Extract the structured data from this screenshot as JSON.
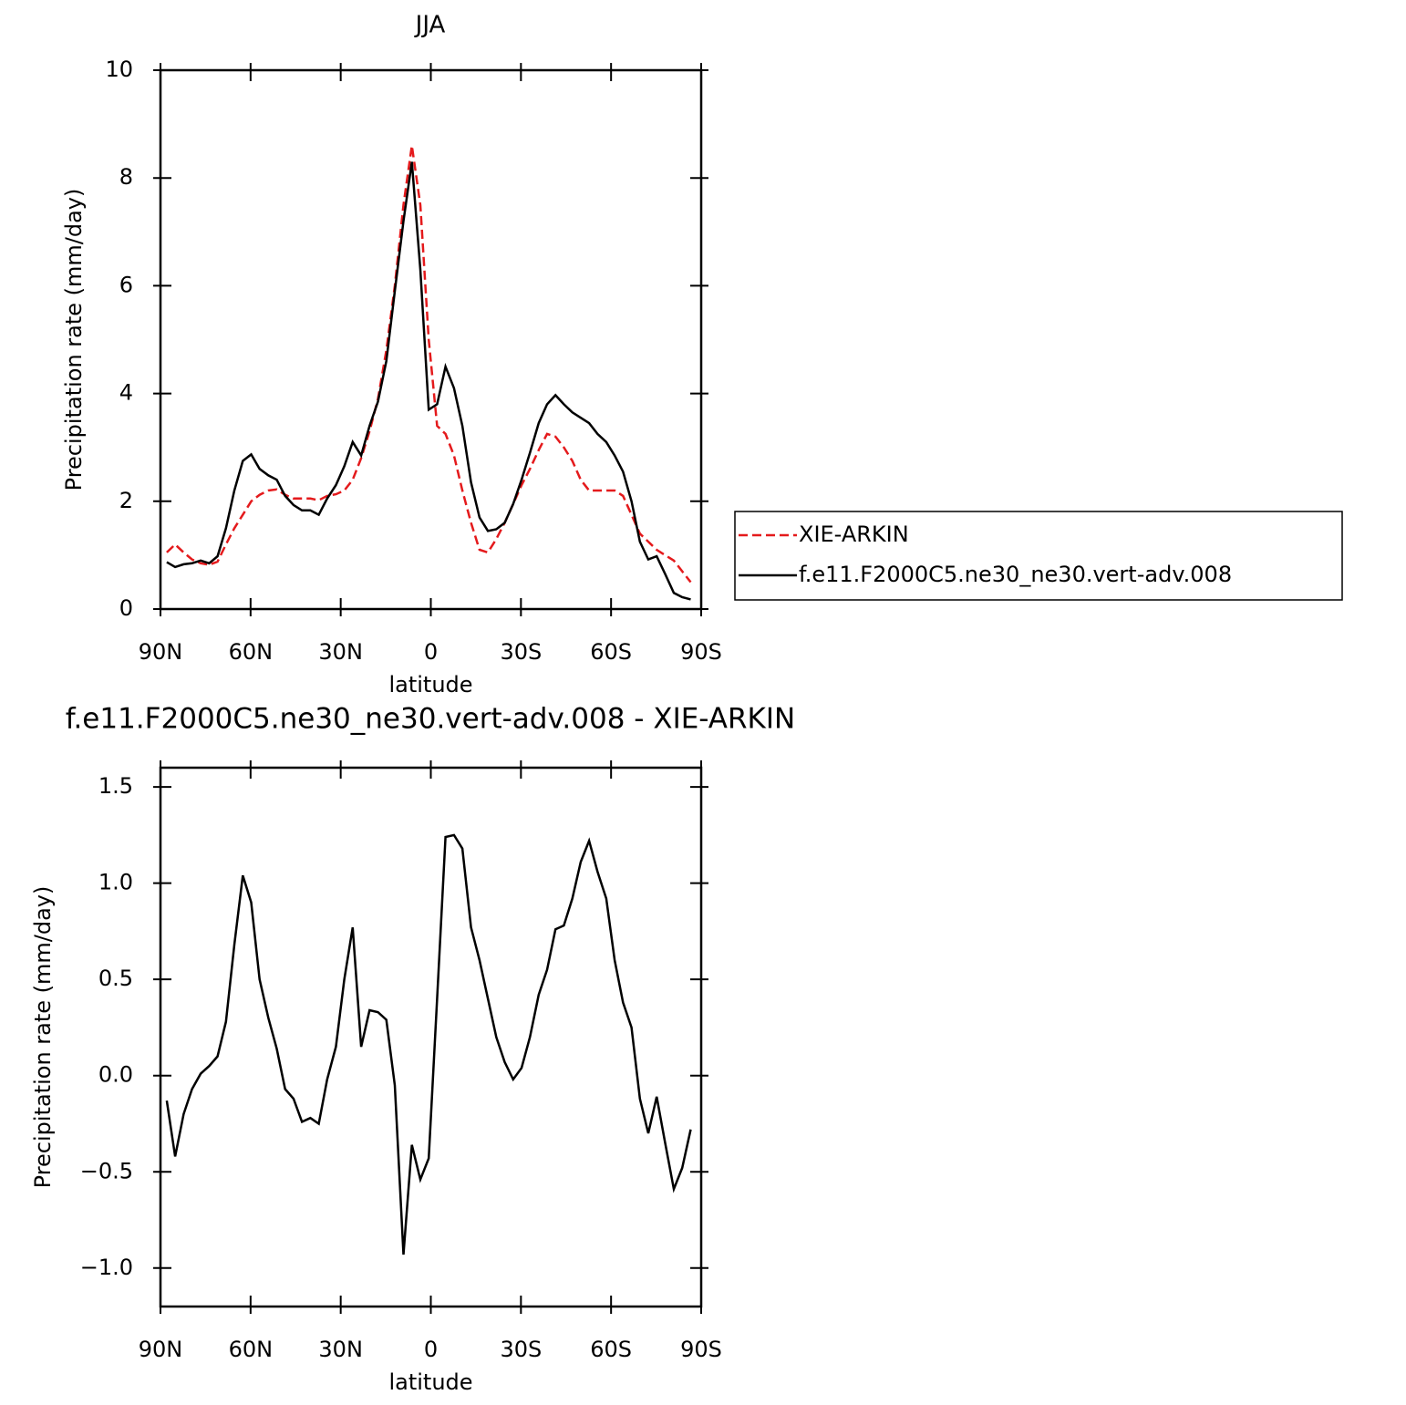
{
  "chart_data": [
    {
      "type": "line",
      "title": "JJA",
      "xlabel": "latitude",
      "ylabel": "Precipitation rate (mm/day)",
      "x": [
        87.9,
        85.1,
        82.3,
        79.5,
        76.6,
        73.8,
        71.0,
        68.2,
        65.4,
        62.6,
        59.8,
        57.0,
        54.1,
        51.3,
        48.5,
        45.7,
        42.9,
        40.1,
        37.3,
        34.5,
        31.6,
        28.8,
        26.0,
        23.2,
        20.4,
        17.6,
        14.8,
        12.0,
        9.1,
        6.3,
        3.5,
        0.7,
        -2.1,
        -4.9,
        -7.7,
        -10.5,
        -13.4,
        -16.2,
        -19.0,
        -21.8,
        -24.6,
        -27.4,
        -30.2,
        -33.0,
        -35.9,
        -38.7,
        -41.5,
        -44.3,
        -47.1,
        -49.9,
        -52.7,
        -55.5,
        -58.4,
        -61.2,
        -64.0,
        -66.8,
        -69.6,
        -72.4,
        -75.2,
        -78.0,
        -80.9,
        -83.7,
        -86.5
      ],
      "series": [
        {
          "name": "XIE-ARKIN",
          "color": "#e41a1c",
          "line_style": "dashed",
          "values": [
            1.05,
            1.2,
            1.05,
            0.92,
            0.85,
            0.82,
            0.88,
            1.2,
            1.5,
            1.75,
            2.0,
            2.12,
            2.2,
            2.22,
            2.12,
            2.05,
            2.05,
            2.05,
            2.02,
            2.1,
            2.13,
            2.2,
            2.4,
            2.8,
            3.3,
            3.9,
            4.8,
            6.0,
            7.5,
            8.6,
            7.5,
            5.0,
            3.4,
            3.25,
            2.85,
            2.2,
            1.6,
            1.1,
            1.05,
            1.3,
            1.6,
            1.95,
            2.3,
            2.6,
            2.95,
            3.25,
            3.2,
            3.0,
            2.75,
            2.4,
            2.2,
            2.2,
            2.2,
            2.2,
            2.1,
            1.75,
            1.4,
            1.25,
            1.1,
            1.0,
            0.9,
            0.7,
            0.5
          ]
        },
        {
          "name": "f.e11.F2000C5.ne30_ne30.vert-adv.008",
          "color": "#000000",
          "line_style": "solid",
          "values": [
            0.87,
            0.78,
            0.83,
            0.85,
            0.9,
            0.85,
            0.98,
            1.5,
            2.2,
            2.75,
            2.87,
            2.6,
            2.48,
            2.4,
            2.1,
            1.93,
            1.83,
            1.83,
            1.75,
            2.05,
            2.3,
            2.65,
            3.1,
            2.85,
            3.4,
            3.85,
            4.6,
            5.9,
            7.2,
            8.3,
            6.3,
            3.7,
            3.8,
            4.5,
            4.1,
            3.4,
            2.35,
            1.7,
            1.45,
            1.48,
            1.6,
            1.95,
            2.4,
            2.9,
            3.45,
            3.8,
            3.97,
            3.8,
            3.65,
            3.55,
            3.45,
            3.25,
            3.1,
            2.85,
            2.55,
            2.0,
            1.25,
            0.92,
            0.98,
            0.65,
            0.3,
            0.22,
            0.18
          ]
        }
      ],
      "xlim": [
        90,
        -90
      ],
      "xticks": [
        {
          "value": 90,
          "label": "90N"
        },
        {
          "value": 60,
          "label": "60N"
        },
        {
          "value": 30,
          "label": "30N"
        },
        0,
        {
          "value": -30,
          "label": "30S"
        },
        {
          "value": -60,
          "label": "60S"
        },
        {
          "value": -90,
          "label": "90S"
        }
      ],
      "ylim": [
        0,
        10
      ],
      "yticks": [
        0,
        2,
        4,
        6,
        8,
        10
      ],
      "legend": "outside-right"
    },
    {
      "type": "line",
      "title": "f.e11.F2000C5.ne30_ne30.vert-adv.008 - XIE-ARKIN",
      "xlabel": "latitude",
      "ylabel": "Precipitation rate (mm/day)",
      "x": [
        87.9,
        85.1,
        82.3,
        79.5,
        76.6,
        73.8,
        71.0,
        68.2,
        65.4,
        62.6,
        59.8,
        57.0,
        54.1,
        51.3,
        48.5,
        45.7,
        42.9,
        40.1,
        37.3,
        34.5,
        31.6,
        28.8,
        26.0,
        23.2,
        20.4,
        17.6,
        14.8,
        12.0,
        9.1,
        6.3,
        3.5,
        0.7,
        -2.1,
        -4.9,
        -7.7,
        -10.5,
        -13.4,
        -16.2,
        -19.0,
        -21.8,
        -24.6,
        -27.4,
        -30.2,
        -33.0,
        -35.9,
        -38.7,
        -41.5,
        -44.3,
        -47.1,
        -49.9,
        -52.7,
        -55.5,
        -58.4,
        -61.2,
        -64.0,
        -66.8,
        -69.6,
        -72.4,
        -75.2,
        -78.0,
        -80.9,
        -83.7,
        -86.5
      ],
      "series": [
        {
          "color": "#000000",
          "line_style": "solid",
          "values": [
            -0.13,
            -0.42,
            -0.2,
            -0.07,
            0.01,
            0.05,
            0.1,
            0.28,
            0.68,
            1.04,
            0.9,
            0.5,
            0.3,
            0.14,
            -0.07,
            -0.12,
            -0.24,
            -0.22,
            -0.25,
            -0.02,
            0.15,
            0.5,
            0.77,
            0.15,
            0.34,
            0.33,
            0.29,
            -0.05,
            -0.93,
            -0.36,
            -0.54,
            -0.43,
            0.4,
            1.24,
            1.25,
            1.18,
            0.77,
            0.6,
            0.4,
            0.2,
            0.07,
            -0.02,
            0.04,
            0.2,
            0.42,
            0.55,
            0.76,
            0.78,
            0.92,
            1.11,
            1.22,
            1.06,
            0.92,
            0.6,
            0.38,
            0.25,
            -0.12,
            -0.3,
            -0.11,
            -0.35,
            -0.59,
            -0.48,
            -0.28
          ]
        }
      ],
      "xlim": [
        90,
        -90
      ],
      "xticks": [
        {
          "value": 90,
          "label": "90N"
        },
        {
          "value": 60,
          "label": "60N"
        },
        {
          "value": 30,
          "label": "30N"
        },
        0,
        {
          "value": -30,
          "label": "30S"
        },
        {
          "value": -60,
          "label": "60S"
        },
        {
          "value": -90,
          "label": "90S"
        }
      ],
      "ylim": [
        -1.2,
        1.6
      ],
      "yticks": [
        {
          "value": -1.0,
          "label": "−1.0"
        },
        {
          "value": -0.5,
          "label": "−0.5"
        },
        {
          "value": 0.0,
          "label": "0.0"
        },
        {
          "value": 0.5,
          "label": "0.5"
        },
        {
          "value": 1.0,
          "label": "1.0"
        },
        {
          "value": 1.5,
          "label": "1.5"
        }
      ]
    }
  ]
}
